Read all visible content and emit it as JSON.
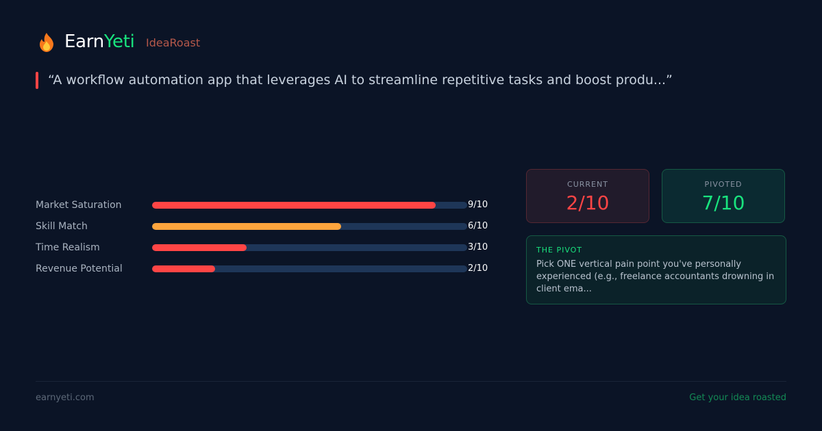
{
  "header": {
    "logo_icon": "fire-icon",
    "brand_prefix": "Earn",
    "brand_suffix": "Yeti",
    "product": "IdeaRoast"
  },
  "idea_quote": "“A workflow automation app that leverages AI to streamline repetitive tasks and boost produ...”",
  "metrics": [
    {
      "label": "Market Saturation",
      "score": "9/10",
      "value": 9,
      "max": 10,
      "color": "#ff4545"
    },
    {
      "label": "Skill Match",
      "score": "6/10",
      "value": 6,
      "max": 10,
      "color": "#ffa53d"
    },
    {
      "label": "Time Realism",
      "score": "3/10",
      "value": 3,
      "max": 10,
      "color": "#ff4545"
    },
    {
      "label": "Revenue Potential",
      "score": "2/10",
      "value": 2,
      "max": 10,
      "color": "#ff4545"
    }
  ],
  "scores": {
    "current": {
      "label": "CURRENT",
      "value": "2/10"
    },
    "pivoted": {
      "label": "PIVOTED",
      "value": "7/10"
    }
  },
  "pivot": {
    "title": "THE PIVOT",
    "text": "Pick ONE vertical pain point you've personally experienced (e.g., freelance accountants drowning in client ema..."
  },
  "footer": {
    "site": "earnyeti.com",
    "cta": "Get your idea roasted"
  },
  "colors": {
    "background": "#0b1426",
    "accent_green": "#19e37e",
    "accent_red": "#ff4545",
    "accent_orange": "#ffa53d"
  }
}
